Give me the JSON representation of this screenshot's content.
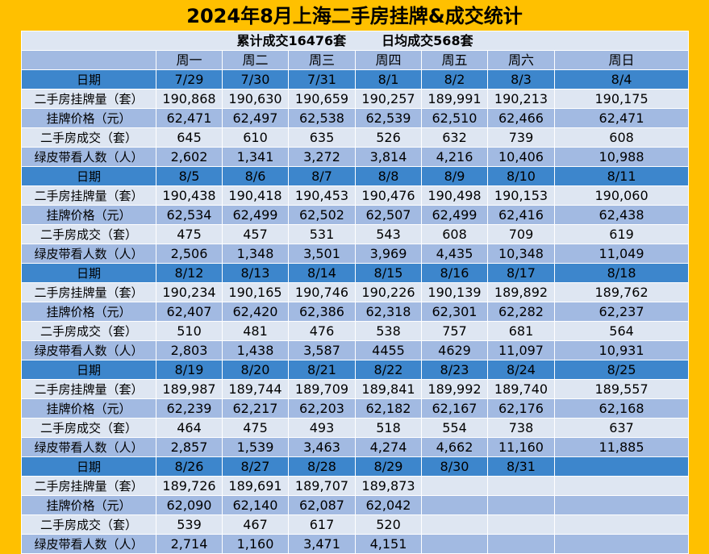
{
  "title": "2024年8月上海二手房挂牌&成交统计",
  "summary": {
    "cumulative": "累计成交16476套",
    "daily_avg": "日均成交568套"
  },
  "weekdays": [
    "周一",
    "周二",
    "周三",
    "周四",
    "周五",
    "周六",
    "周日"
  ],
  "row_labels": {
    "date": "日期",
    "listings": "二手房挂牌量（套）",
    "price": "挂牌价格（元）",
    "deals": "二手房成交（套）",
    "viewers": "绿皮带看人数（人）"
  },
  "weeks": [
    {
      "dates": [
        "7/29",
        "7/30",
        "7/31",
        "8/1",
        "8/2",
        "8/3",
        "8/4"
      ],
      "listings": [
        "190,868",
        "190,630",
        "190,659",
        "190,257",
        "189,991",
        "190,213",
        "190,175"
      ],
      "price": [
        "62,471",
        "62,497",
        "62,538",
        "62,539",
        "62,510",
        "62,466",
        "62,471"
      ],
      "deals": [
        "645",
        "610",
        "635",
        "526",
        "632",
        "739",
        "608"
      ],
      "viewers": [
        "2,602",
        "1,341",
        "3,272",
        "3,814",
        "4,216",
        "10,406",
        "10,988"
      ]
    },
    {
      "dates": [
        "8/5",
        "8/6",
        "8/7",
        "8/8",
        "8/9",
        "8/10",
        "8/11"
      ],
      "listings": [
        "190,438",
        "190,418",
        "190,453",
        "190,476",
        "190,498",
        "190,153",
        "190,060"
      ],
      "price": [
        "62,534",
        "62,499",
        "62,502",
        "62,507",
        "62,499",
        "62,416",
        "62,438"
      ],
      "deals": [
        "475",
        "457",
        "531",
        "543",
        "608",
        "709",
        "619"
      ],
      "viewers": [
        "2,506",
        "1,348",
        "3,501",
        "3,969",
        "4,435",
        "10,348",
        "11,049"
      ]
    },
    {
      "dates": [
        "8/12",
        "8/13",
        "8/14",
        "8/15",
        "8/16",
        "8/17",
        "8/18"
      ],
      "listings": [
        "190,234",
        "190,165",
        "190,746",
        "190,226",
        "190,139",
        "189,892",
        "189,762"
      ],
      "price": [
        "62,407",
        "62,420",
        "62,386",
        "62,318",
        "62,301",
        "62,282",
        "62,237"
      ],
      "deals": [
        "510",
        "481",
        "476",
        "538",
        "757",
        "681",
        "564"
      ],
      "viewers": [
        "2,803",
        "1,438",
        "3,587",
        "4455",
        "4629",
        "11,097",
        "10,931"
      ]
    },
    {
      "dates": [
        "8/19",
        "8/20",
        "8/21",
        "8/22",
        "8/23",
        "8/24",
        "8/25"
      ],
      "listings": [
        "189,987",
        "189,744",
        "189,709",
        "189,841",
        "189,992",
        "189,740",
        "189,557"
      ],
      "price": [
        "62,239",
        "62,217",
        "62,203",
        "62,182",
        "62,167",
        "62,176",
        "62,168"
      ],
      "deals": [
        "464",
        "475",
        "493",
        "518",
        "554",
        "738",
        "637"
      ],
      "viewers": [
        "2,857",
        "1,539",
        "3,463",
        "4,274",
        "4,662",
        "11,160",
        "11,885"
      ]
    },
    {
      "dates": [
        "8/26",
        "8/27",
        "8/28",
        "8/29",
        "8/30",
        "8/31",
        ""
      ],
      "listings": [
        "189,726",
        "189,691",
        "189,707",
        "189,873",
        "",
        "",
        ""
      ],
      "price": [
        "62,090",
        "62,140",
        "62,087",
        "62,042",
        "",
        "",
        ""
      ],
      "deals": [
        "539",
        "467",
        "617",
        "520",
        "",
        "",
        ""
      ],
      "viewers": [
        "2,714",
        "1,160",
        "3,471",
        "4,151",
        "",
        "",
        ""
      ]
    }
  ]
}
